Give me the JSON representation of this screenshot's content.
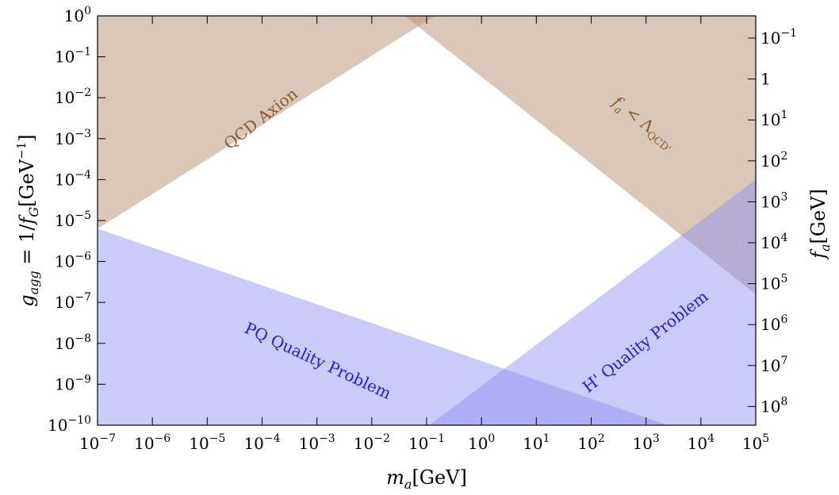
{
  "chart_data": {
    "type": "area",
    "x_axis": {
      "label": "m_a[GeV]",
      "scale": "log",
      "range_exp": [
        -7,
        5
      ],
      "tick_exponents": [
        -7,
        -6,
        -5,
        -4,
        -3,
        -2,
        -1,
        0,
        1,
        2,
        3,
        4,
        5
      ]
    },
    "y_axis_left": {
      "label": "g_agg = 1/f_G[GeV^-1]",
      "scale": "log",
      "range_exp": [
        -10,
        0
      ],
      "tick_exponents": [
        -10,
        -9,
        -8,
        -7,
        -6,
        -5,
        -4,
        -3,
        -2,
        -1,
        0
      ]
    },
    "y_axis_right": {
      "label": "f_a[GeV]",
      "scale": "log",
      "tick_labels": [
        {
          "text": "10",
          "exp": "−1",
          "value": 0.1
        },
        {
          "text": "1",
          "exp": "",
          "value": 1
        },
        {
          "text": "10",
          "exp": "1",
          "value": 10
        },
        {
          "text": "10",
          "exp": "2",
          "value": 100
        },
        {
          "text": "10",
          "exp": "3",
          "value": 1000
        },
        {
          "text": "10",
          "exp": "4",
          "value": 10000
        },
        {
          "text": "10",
          "exp": "5",
          "value": 100000
        },
        {
          "text": "10",
          "exp": "6",
          "value": 1000000
        },
        {
          "text": "10",
          "exp": "7",
          "value": 10000000
        },
        {
          "text": "10",
          "exp": "8",
          "value": 100000000
        }
      ]
    },
    "regions": [
      {
        "name": "QCD Axion",
        "color": "#b39272",
        "opacity": 0.5,
        "label_color": "#8b5a2b",
        "polygon_log": [
          [
            -7,
            0
          ],
          [
            -7,
            -5.2
          ],
          [
            -0.85,
            0.0
          ]
        ]
      },
      {
        "name": "f_a < Λ_QCD'",
        "color": "#b39272",
        "opacity": 0.5,
        "label_color": "#8b5a2b",
        "polygon_log": [
          [
            -1.4,
            0
          ],
          [
            5,
            0
          ],
          [
            5,
            -6.8
          ]
        ]
      },
      {
        "name": "PQ Quality Problem",
        "color": "#8c8cf5",
        "opacity": 0.45,
        "label_color": "#1f1fd6",
        "polygon_log": [
          [
            -7,
            -10
          ],
          [
            -7,
            -5.2
          ],
          [
            3.4,
            -10
          ]
        ]
      },
      {
        "name": "H' Quality Problem",
        "color": "#8c8cf5",
        "opacity": 0.45,
        "label_color": "#1f1fd6",
        "polygon_log": [
          [
            -0.95,
            -10
          ],
          [
            5,
            -4.0
          ],
          [
            5,
            -10
          ]
        ]
      }
    ]
  },
  "labels": {
    "qcd_axion": "QCD Axion",
    "fa_lambda": {
      "main": "f",
      "sub_a": "a",
      "rest": " < Λ",
      "sub_qcd": "QCD'"
    },
    "pq_quality": "PQ Quality Problem",
    "h_quality": "H' Quality Problem",
    "x_title": {
      "main": "m",
      "sub": "a",
      "unit": "[GeV]"
    },
    "y_left_title": {
      "g": "g",
      "sub": "agg",
      "eq": " = 1/",
      "f": "f",
      "fsub": "G",
      "unit": "[GeV",
      "unitexp": "−1",
      "close": "]"
    },
    "y_right_title": {
      "main": "f",
      "sub": "a",
      "unit": "[GeV]"
    },
    "tick_base": "10"
  }
}
